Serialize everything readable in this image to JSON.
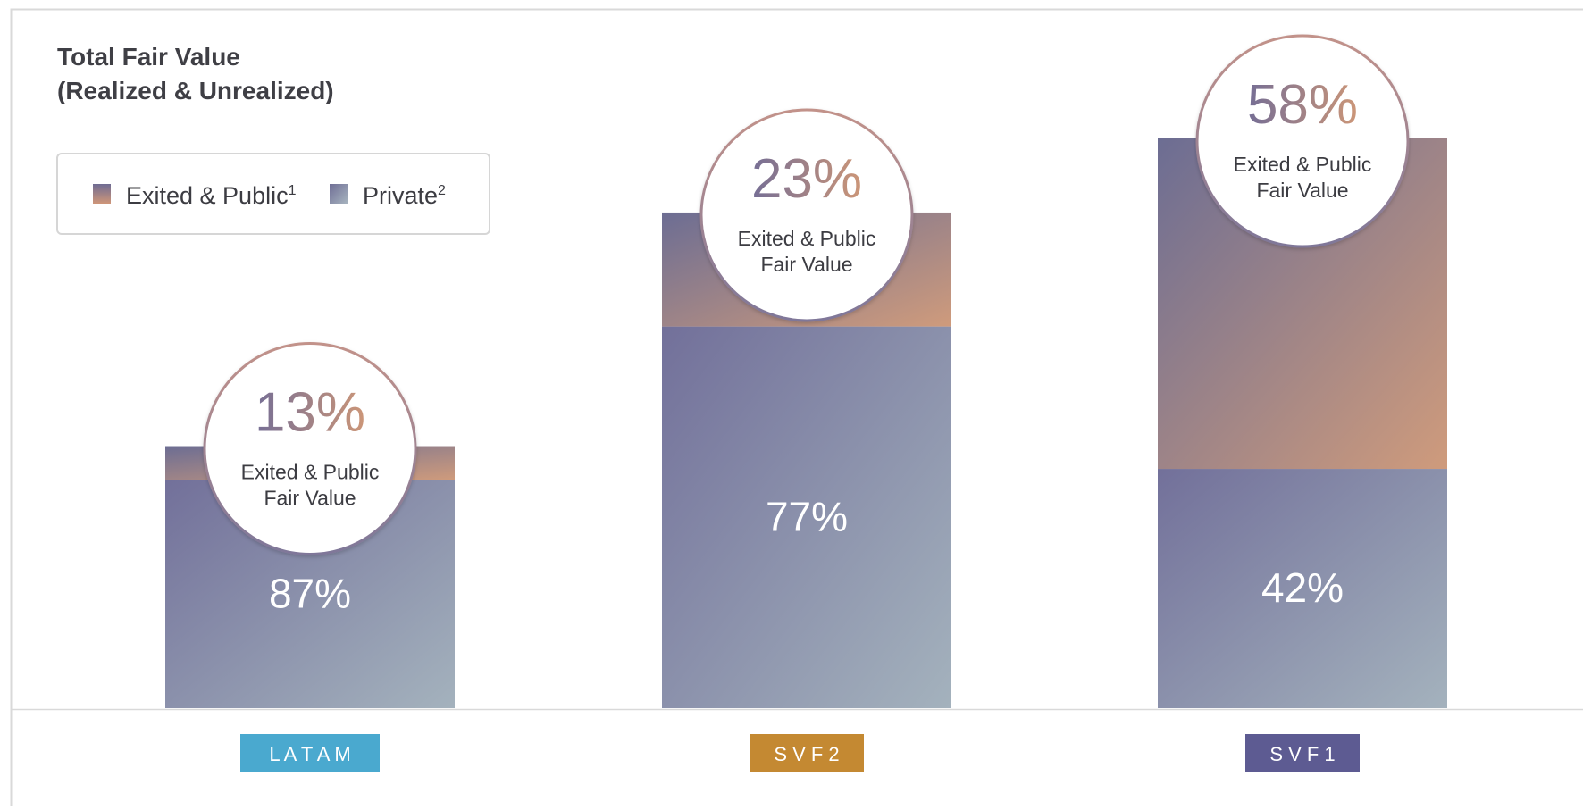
{
  "chart_data": {
    "type": "bar",
    "stacked": true,
    "title": "Total Fair Value\n(Realized & Unrealized)",
    "title_lines": [
      "Total Fair Value",
      "(Realized & Unrealized)"
    ],
    "legend": {
      "placement": "top-left",
      "items": [
        {
          "label": "Exited & Public",
          "superscript": "1"
        },
        {
          "label": "Private",
          "superscript": "2"
        }
      ]
    },
    "categories": [
      "LATAM",
      "SVF2",
      "SVF1"
    ],
    "category_labels": [
      "L A T A M",
      "S V F 2",
      "S V F 1"
    ],
    "category_colors": [
      "#4aa9cf",
      "#c48932",
      "#5d5b92"
    ],
    "series": [
      {
        "name": "Private",
        "values": [
          87,
          77,
          42
        ],
        "labels": [
          "87%",
          "77%",
          "42%"
        ]
      },
      {
        "name": "Exited & Public",
        "values": [
          13,
          23,
          58
        ],
        "labels": [
          "13%",
          "23%",
          "58%"
        ],
        "annotation_lines": [
          "Exited & Public",
          "Fair Value"
        ]
      }
    ],
    "relative_bar_totals": [
      0.46,
      0.87,
      1.0
    ],
    "colors": {
      "exited_start": "#6c6d93",
      "exited_end": "#cf9b7c",
      "private_start": "#72709a",
      "private_end": "#a4b2bd",
      "label_badge_start": "#756e95",
      "label_badge_end": "#cc9678"
    }
  }
}
